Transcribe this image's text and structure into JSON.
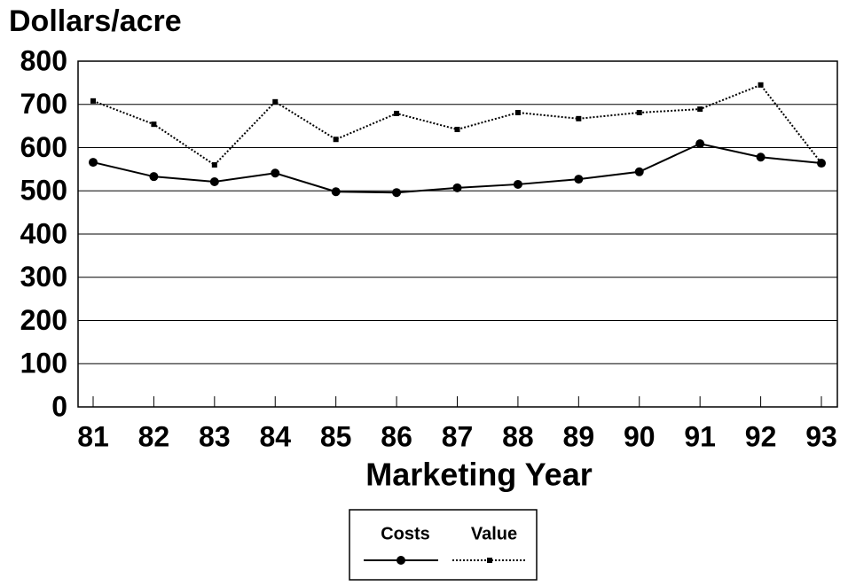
{
  "chart_data": {
    "type": "line",
    "y_label": "Dollars/acre",
    "x_label": "Marketing Year",
    "categories": [
      "81",
      "82",
      "83",
      "84",
      "85",
      "86",
      "87",
      "88",
      "89",
      "90",
      "91",
      "92",
      "93"
    ],
    "series": [
      {
        "name": "Costs",
        "color": "#000000",
        "line_style": "solid",
        "marker": "circle",
        "values": [
          566,
          533,
          521,
          541,
          498,
          496,
          507,
          515,
          527,
          544,
          609,
          578,
          564
        ]
      },
      {
        "name": "Value",
        "color": "#000000",
        "line_style": "dotted",
        "marker": "square",
        "values": [
          708,
          654,
          560,
          706,
          619,
          679,
          642,
          681,
          667,
          681,
          689,
          745,
          564
        ]
      }
    ],
    "ylim": [
      0,
      800
    ],
    "yticks": [
      0,
      100,
      200,
      300,
      400,
      500,
      600,
      700,
      800
    ],
    "grid": true,
    "legend": "bottom"
  }
}
